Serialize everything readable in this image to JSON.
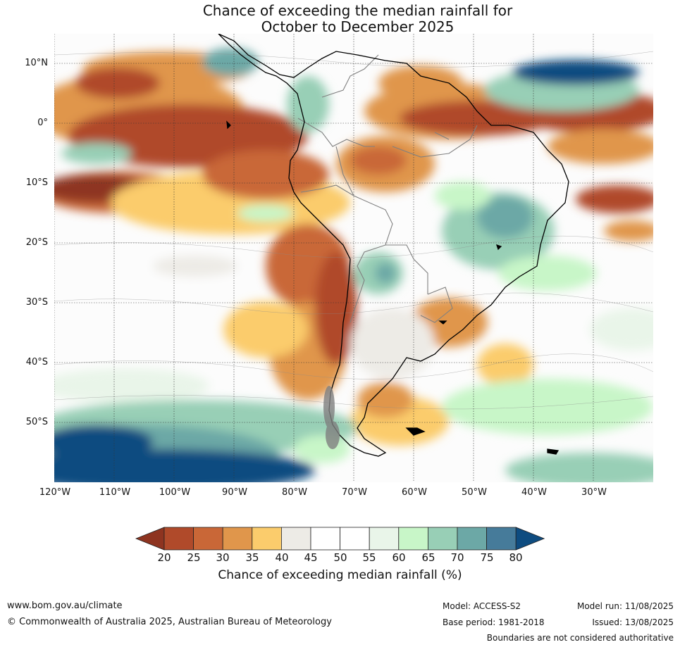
{
  "title_line1": "Chance of exceeding the median rainfall for",
  "title_line2": "October to December 2025",
  "lat_labels": [
    "10°N",
    "0°",
    "10°S",
    "20°S",
    "30°S",
    "40°S",
    "50°S"
  ],
  "lon_labels": [
    "120°W",
    "110°W",
    "100°W",
    "90°W",
    "80°W",
    "70°W",
    "60°W",
    "50°W",
    "40°W",
    "30°W"
  ],
  "colorbar": {
    "ticks": [
      "20",
      "25",
      "30",
      "35",
      "40",
      "45",
      "50",
      "55",
      "60",
      "65",
      "70",
      "75",
      "80"
    ],
    "colors": [
      "#b04a2a",
      "#c96737",
      "#e0964b",
      "#fbcc6c",
      "#edebe6",
      "#ffffff",
      "#ffffff",
      "#e9f5e9",
      "#c8f6c8",
      "#98cfb6",
      "#6ca8a6",
      "#467b9a"
    ],
    "low_color": "#8e3420",
    "high_color": "#0e4c80",
    "title": "Chance of exceeding median rainfall (%)"
  },
  "footer": {
    "website": "www.bom.gov.au/climate",
    "copyright": "© Commonwealth of Australia 2025, Australian Bureau of Meteorology",
    "model": "Model: ACCESS-S2",
    "base_period": "Base period: 1981-2018",
    "model_run": "Model run: 11/08/2025",
    "issued": "Issued: 13/08/2025",
    "disclaimer": "Boundaries are not considered authoritative"
  }
}
